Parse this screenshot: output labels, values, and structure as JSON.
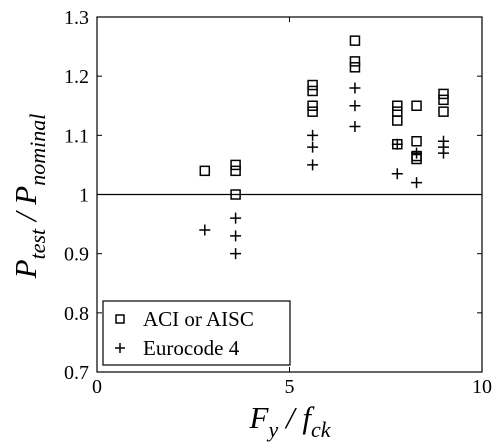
{
  "chart_data": {
    "type": "scatter",
    "xlim": [
      0,
      10
    ],
    "ylim": [
      0.7,
      1.3
    ],
    "x_ticks": [
      0,
      5,
      10
    ],
    "y_ticks": [
      0.7,
      0.8,
      0.9,
      1.0,
      1.1,
      1.2,
      1.3
    ],
    "x_tick_labels": [
      "0",
      "5",
      "10"
    ],
    "y_tick_labels": [
      "0.7",
      "0.8",
      "0.9",
      "1",
      "1.1",
      "1.2",
      "1.3"
    ],
    "xlabel": {
      "main": "F",
      "sub1": "y",
      "sep": " / f",
      "sub2": "ck"
    },
    "ylabel": {
      "main": "P",
      "sub1": "test",
      "sep": " / P",
      "sub2": "nominal"
    },
    "reference_line_y": 1.0,
    "grid": false,
    "legend_position": "bottom-left",
    "series": [
      {
        "name": "ACI or AISC",
        "marker": "square",
        "points": [
          [
            2.8,
            1.04
          ],
          [
            3.6,
            1.05
          ],
          [
            3.6,
            1.04
          ],
          [
            3.6,
            1.0
          ],
          [
            5.6,
            1.185
          ],
          [
            5.6,
            1.175
          ],
          [
            5.6,
            1.15
          ],
          [
            5.6,
            1.14
          ],
          [
            6.7,
            1.26
          ],
          [
            6.7,
            1.225
          ],
          [
            6.7,
            1.215
          ],
          [
            7.8,
            1.15
          ],
          [
            7.8,
            1.14
          ],
          [
            7.8,
            1.125
          ],
          [
            7.8,
            1.085
          ],
          [
            8.3,
            1.15
          ],
          [
            8.3,
            1.09
          ],
          [
            8.3,
            1.065
          ],
          [
            8.3,
            1.06
          ],
          [
            9.0,
            1.17
          ],
          [
            9.0,
            1.16
          ],
          [
            9.0,
            1.14
          ]
        ]
      },
      {
        "name": "Eurocode 4",
        "marker": "plus",
        "points": [
          [
            2.8,
            0.94
          ],
          [
            3.6,
            0.96
          ],
          [
            3.6,
            0.93
          ],
          [
            3.6,
            0.9
          ],
          [
            5.6,
            1.1
          ],
          [
            5.6,
            1.08
          ],
          [
            5.6,
            1.05
          ],
          [
            6.7,
            1.18
          ],
          [
            6.7,
            1.15
          ],
          [
            6.7,
            1.115
          ],
          [
            7.8,
            1.085
          ],
          [
            7.8,
            1.035
          ],
          [
            8.3,
            1.07
          ],
          [
            8.3,
            1.02
          ],
          [
            9.0,
            1.09
          ],
          [
            9.0,
            1.08
          ],
          [
            9.0,
            1.07
          ]
        ]
      }
    ]
  }
}
